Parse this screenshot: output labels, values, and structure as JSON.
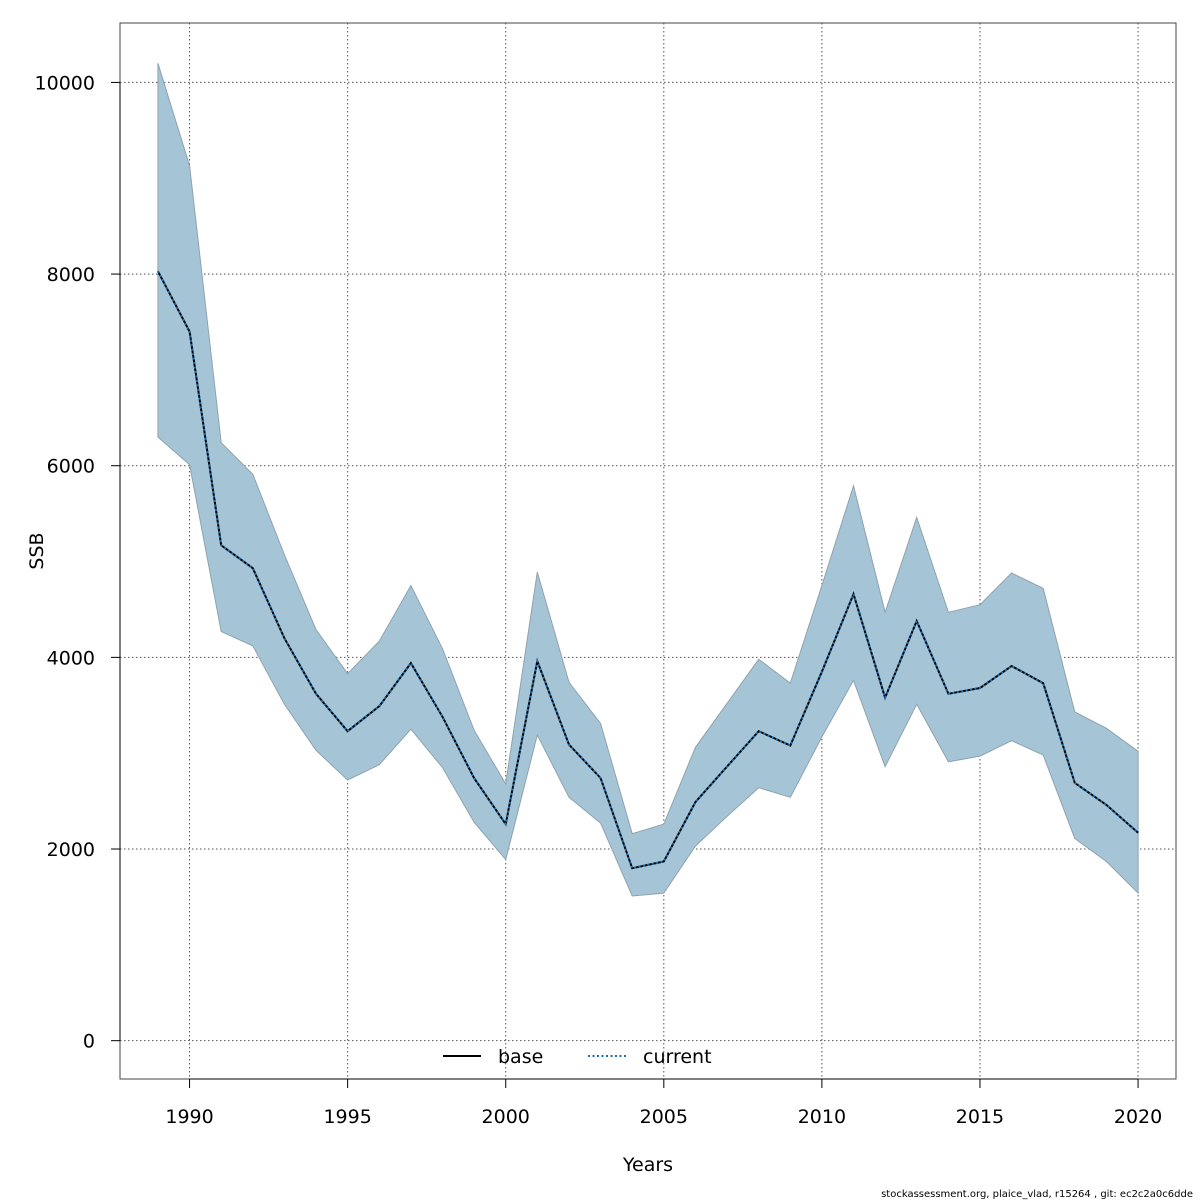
{
  "chart_data": {
    "type": "area",
    "xlabel": "Years",
    "ylabel": "SSB",
    "xlim": [
      1987.8,
      2021.2
    ],
    "ylim": [
      -400,
      10620
    ],
    "grid": true,
    "legend_placement": "bottom",
    "x_ticks": [
      1990,
      1995,
      2000,
      2005,
      2010,
      2015,
      2020
    ],
    "x_tick_labels": [
      "1990",
      "1995",
      "2000",
      "2005",
      "2010",
      "2015",
      "2020"
    ],
    "y_ticks": [
      0,
      2000,
      4000,
      6000,
      8000,
      10000
    ],
    "y_tick_labels": [
      "0",
      "2000",
      "4000",
      "6000",
      "8000",
      "10000"
    ],
    "x": [
      1989,
      1990,
      1991,
      1992,
      1993,
      1994,
      1995,
      1996,
      1997,
      1998,
      1999,
      2000,
      2001,
      2002,
      2003,
      2004,
      2005,
      2006,
      2007,
      2008,
      2009,
      2010,
      2011,
      2012,
      2013,
      2014,
      2015,
      2016,
      2017,
      2018,
      2019,
      2020
    ],
    "band": {
      "color": "#a5c5d6",
      "edge_color": "#8ea3ae",
      "upper": [
        10200,
        9130,
        6240,
        5910,
        5070,
        4290,
        3830,
        4170,
        4750,
        4090,
        3240,
        2680,
        4890,
        3740,
        3310,
        2160,
        2260,
        3060,
        3520,
        3980,
        3730,
        4750,
        5790,
        4470,
        5460,
        4470,
        4550,
        4880,
        4720,
        3430,
        3260,
        3020
      ],
      "lower": [
        6300,
        6010,
        4270,
        4120,
        3510,
        3030,
        2720,
        2880,
        3250,
        2850,
        2280,
        1890,
        3190,
        2540,
        2270,
        1510,
        1540,
        2030,
        2340,
        2640,
        2540,
        3170,
        3760,
        2860,
        3510,
        2910,
        2970,
        3130,
        2980,
        2110,
        1870,
        1540
      ]
    },
    "series": [
      {
        "name": "base",
        "style": "solid",
        "color": "#000000",
        "values": [
          8030,
          7400,
          5170,
          4930,
          4200,
          3620,
          3230,
          3490,
          3940,
          3380,
          2740,
          2260,
          3960,
          3090,
          2740,
          1800,
          1870,
          2490,
          2860,
          3230,
          3080,
          3850,
          4660,
          3580,
          4380,
          3620,
          3680,
          3910,
          3730,
          2690,
          2460,
          2170
        ]
      },
      {
        "name": "current",
        "style": "dotted",
        "color": "#1f6fb5",
        "values": [
          8030,
          7400,
          5170,
          4930,
          4200,
          3620,
          3230,
          3490,
          3940,
          3380,
          2740,
          2260,
          3960,
          3090,
          2740,
          1800,
          1870,
          2490,
          2860,
          3230,
          3080,
          3850,
          4660,
          3580,
          4380,
          3620,
          3680,
          3910,
          3730,
          2690,
          2460,
          2170
        ]
      }
    ],
    "footer": "stockassessment.org, plaice_vlad, r15264 , git: ec2c2a0c6dde"
  }
}
